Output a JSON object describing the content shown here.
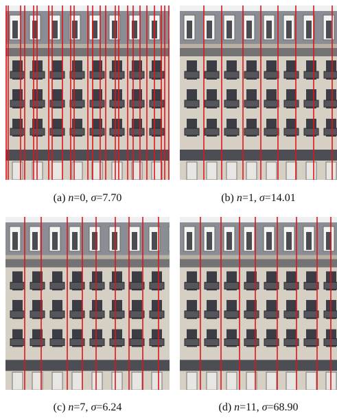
{
  "panels": [
    {
      "label": "(a)",
      "n": "n",
      "n_value": "=0,",
      "sigma": "σ",
      "sigma_value": "=7.70"
    },
    {
      "label": "(b)",
      "n": "n",
      "n_value": "=1,",
      "sigma": "σ",
      "sigma_value": "=14.01"
    },
    {
      "label": "(c)",
      "n": "n",
      "n_value": "=7,",
      "sigma": "σ",
      "sigma_value": "=6.24"
    },
    {
      "label": "(d)",
      "n": "n",
      "n_value": "=11,",
      "sigma": "σ",
      "sigma_value": "=68.90"
    }
  ]
}
